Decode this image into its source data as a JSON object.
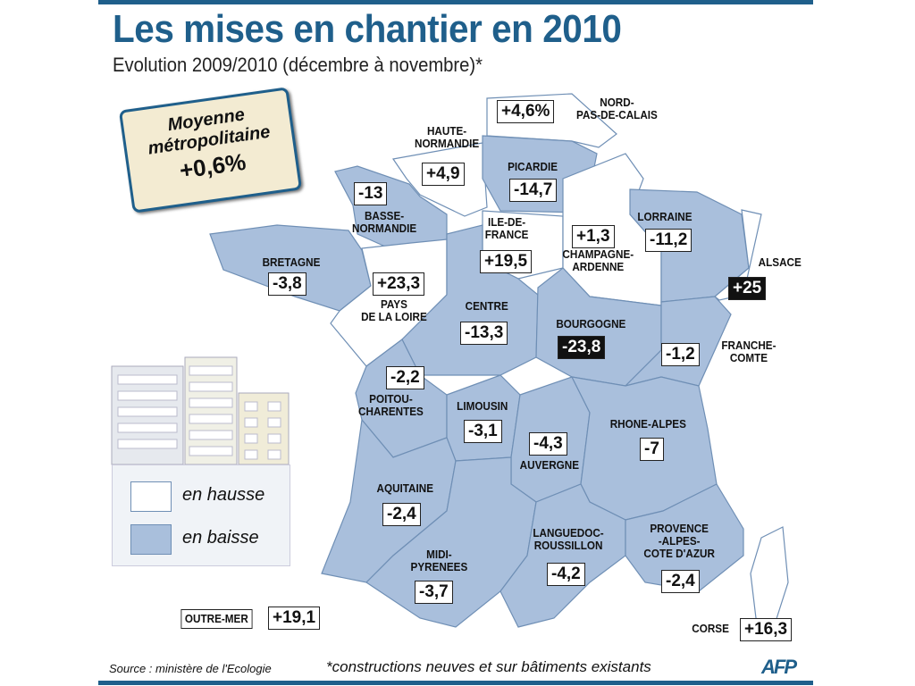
{
  "title": "Les mises en chantier en 2010",
  "subtitle": "Evolution 2009/2010 (décembre à novembre)*",
  "average": {
    "line1": "Moyenne",
    "line2": "métropolitaine",
    "value": "+0,6%"
  },
  "colors": {
    "brand": "#1f5f8b",
    "en_hausse": "#ffffff",
    "en_baisse": "#a9bfdc",
    "avg_box": "#f3ebd2"
  },
  "legend": {
    "up": "en hausse",
    "down": "en baisse"
  },
  "regions": [
    {
      "name": "NORD-\nPAS-DE-CALAIS",
      "value": "+4,6%",
      "trend": "up"
    },
    {
      "name": "HAUTE-\nNORMANDIE",
      "value": "+4,9",
      "trend": "up"
    },
    {
      "name": "PICARDIE",
      "value": "-14,7",
      "trend": "down"
    },
    {
      "name": "BASSE-\nNORMANDIE",
      "value": "-13",
      "trend": "down"
    },
    {
      "name": "ILE-DE-\nFRANCE",
      "value": "+19,5",
      "trend": "up"
    },
    {
      "name": "CHAMPAGNE-\nARDENNE",
      "value": "+1,3",
      "trend": "up"
    },
    {
      "name": "LORRAINE",
      "value": "-11,2",
      "trend": "down"
    },
    {
      "name": "ALSACE",
      "value": "+25",
      "trend": "up"
    },
    {
      "name": "BRETAGNE",
      "value": "-3,8",
      "trend": "down"
    },
    {
      "name": "PAYS\nDE LA LOIRE",
      "value": "+23,3",
      "trend": "up"
    },
    {
      "name": "CENTRE",
      "value": "-13,3",
      "trend": "down"
    },
    {
      "name": "BOURGOGNE",
      "value": "-23,8",
      "trend": "down"
    },
    {
      "name": "FRANCHE-\nCOMTE",
      "value": "-1,2",
      "trend": "down"
    },
    {
      "name": "POITOU-\nCHARENTES",
      "value": "-2,2",
      "trend": "down"
    },
    {
      "name": "LIMOUSIN",
      "value": "-3,1",
      "trend": "down"
    },
    {
      "name": "AUVERGNE",
      "value": "-4,3",
      "trend": "down"
    },
    {
      "name": "RHONE-ALPES",
      "value": "-7",
      "trend": "down"
    },
    {
      "name": "AQUITAINE",
      "value": "-2,4",
      "trend": "down"
    },
    {
      "name": "MIDI-\nPYRENEES",
      "value": "-3,7",
      "trend": "down"
    },
    {
      "name": "LANGUEDOC-\nROUSSILLON",
      "value": "-4,2",
      "trend": "down"
    },
    {
      "name": "PROVENCE\n-ALPES-\nCOTE D'AZUR",
      "value": "-2,4",
      "trend": "down"
    },
    {
      "name": "CORSE",
      "value": "+16,3",
      "trend": "up"
    },
    {
      "name": "OUTRE-MER",
      "value": "+19,1",
      "trend": "up"
    }
  ],
  "footer": {
    "source": "Source : ministère de l'Ecologie",
    "note": "*constructions neuves et sur bâtiments existants",
    "logo": "AFP"
  }
}
